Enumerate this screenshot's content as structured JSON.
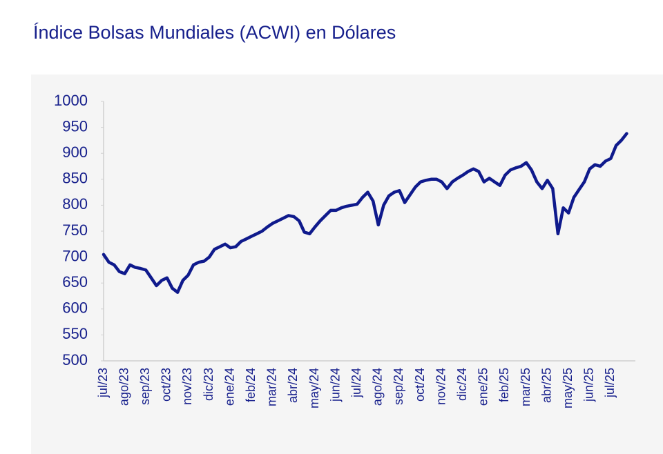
{
  "chart_data": {
    "type": "line",
    "title": "Índice Bolsas Mundiales (ACWI) en Dólares",
    "categories": [
      "jul/23",
      null,
      null,
      null,
      "ago/23",
      null,
      null,
      null,
      "sep/23",
      null,
      null,
      null,
      "oct/23",
      null,
      null,
      null,
      "nov/23",
      null,
      null,
      null,
      "dic/23",
      null,
      null,
      null,
      "ene/24",
      null,
      null,
      null,
      "feb/24",
      null,
      null,
      null,
      "mar/24",
      null,
      null,
      null,
      "abr/24",
      null,
      null,
      null,
      "may/24",
      null,
      null,
      null,
      "jun/24",
      null,
      null,
      null,
      "jul/24",
      null,
      null,
      null,
      "ago/24",
      null,
      null,
      null,
      "sep/24",
      null,
      null,
      null,
      "oct/24",
      null,
      null,
      null,
      "nov/24",
      null,
      null,
      null,
      "dic/24",
      null,
      null,
      null,
      "ene/25",
      null,
      null,
      null,
      "feb/25",
      null,
      null,
      null,
      "mar/25",
      null,
      null,
      null,
      "abr/25",
      null,
      null,
      null,
      "may/25",
      null,
      null,
      null,
      "jun/25",
      null,
      null,
      null,
      "jul/25",
      null,
      null,
      null
    ],
    "values": [
      705,
      690,
      685,
      672,
      668,
      685,
      680,
      678,
      675,
      660,
      645,
      655,
      660,
      640,
      632,
      655,
      665,
      685,
      690,
      692,
      700,
      715,
      720,
      725,
      718,
      720,
      730,
      735,
      740,
      745,
      750,
      758,
      765,
      770,
      775,
      780,
      778,
      770,
      748,
      745,
      758,
      770,
      780,
      790,
      790,
      795,
      798,
      800,
      802,
      815,
      825,
      808,
      762,
      800,
      818,
      825,
      828,
      805,
      820,
      835,
      845,
      848,
      850,
      850,
      845,
      832,
      845,
      852,
      858,
      865,
      870,
      865,
      845,
      852,
      845,
      838,
      858,
      868,
      872,
      875,
      882,
      868,
      845,
      832,
      848,
      832,
      745,
      795,
      785,
      815,
      830,
      845,
      870,
      878,
      875,
      885,
      890,
      915,
      925,
      938
    ],
    "color": "#0f1a8c",
    "ylim": [
      500,
      1000
    ],
    "yticks": [
      500,
      550,
      600,
      650,
      700,
      750,
      800,
      850,
      900,
      950,
      1000
    ],
    "grid": false
  }
}
